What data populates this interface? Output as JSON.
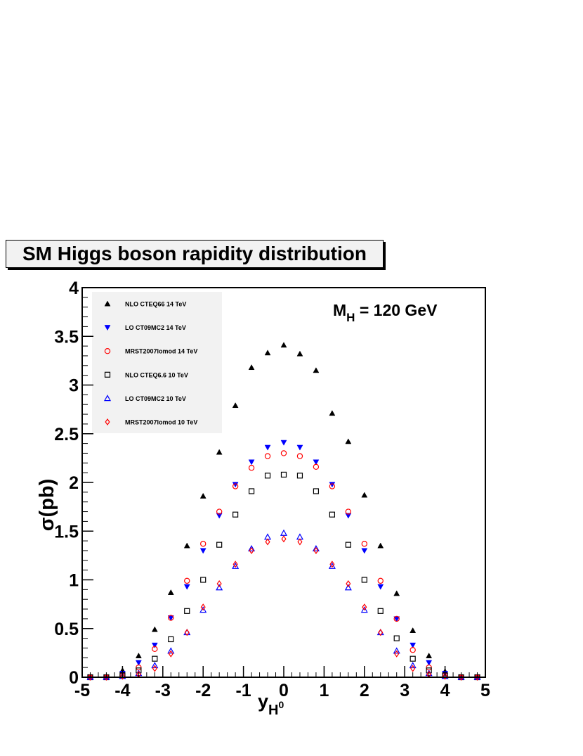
{
  "title": "SM Higgs boson rapidity distribution",
  "annotation": {
    "text": "M",
    "sub": "H",
    "rest": " = 120 GeV"
  },
  "chart_data": {
    "type": "scatter",
    "xlabel": {
      "main": "y",
      "sub": "H",
      "sup": "0"
    },
    "ylabel": "σ(pb)",
    "xlim": [
      -5,
      5
    ],
    "ylim": [
      0,
      4
    ],
    "xticks": [
      "-5",
      "-4",
      "-3",
      "-2",
      "-1",
      "0",
      "1",
      "2",
      "3",
      "4",
      "5"
    ],
    "yticks": [
      "0",
      "0.5",
      "1",
      "1.5",
      "2",
      "2.5",
      "3",
      "3.5",
      "4"
    ],
    "legend_position": "top-left",
    "x": [
      -4.8,
      -4.4,
      -4.0,
      -3.6,
      -3.2,
      -2.8,
      -2.4,
      -2.0,
      -1.6,
      -1.2,
      -0.8,
      -0.4,
      0.0,
      0.4,
      0.8,
      1.2,
      1.6,
      2.0,
      2.4,
      2.8,
      3.2,
      3.6,
      4.0,
      4.4,
      4.8
    ],
    "series": [
      {
        "name": "NLO CTEQ66 14 TeV",
        "marker": "triangle-up-filled",
        "color": "#000000",
        "values": [
          0.0,
          0.0,
          0.07,
          0.22,
          0.49,
          0.87,
          1.35,
          1.86,
          2.31,
          2.79,
          3.18,
          3.33,
          3.41,
          3.32,
          3.15,
          2.71,
          2.42,
          1.87,
          1.35,
          0.86,
          0.48,
          0.22,
          0.06,
          0.0,
          0.0
        ]
      },
      {
        "name": "LO CT09MC2 14 TeV",
        "marker": "triangle-down-filled",
        "color": "#0000ff",
        "values": [
          0.0,
          0.0,
          0.04,
          0.15,
          0.33,
          0.61,
          0.93,
          1.3,
          1.66,
          1.98,
          2.21,
          2.36,
          2.41,
          2.36,
          2.21,
          1.98,
          1.66,
          1.3,
          0.93,
          0.6,
          0.33,
          0.15,
          0.04,
          0.0,
          0.0
        ]
      },
      {
        "name": "MRST2007lomod 14 TeV",
        "marker": "circle-open",
        "color": "#ff0000",
        "values": [
          0.0,
          0.0,
          0.02,
          0.1,
          0.29,
          0.61,
          0.99,
          1.37,
          1.7,
          1.96,
          2.15,
          2.27,
          2.3,
          2.27,
          2.16,
          1.96,
          1.7,
          1.37,
          0.99,
          0.6,
          0.28,
          0.1,
          0.02,
          0.0,
          0.0
        ]
      },
      {
        "name": "NLO CTEQ6.6 10 TeV",
        "marker": "square-open",
        "color": "#000000",
        "values": [
          0.0,
          0.0,
          0.02,
          0.07,
          0.19,
          0.39,
          0.68,
          1.0,
          1.36,
          1.67,
          1.91,
          2.07,
          2.08,
          2.07,
          1.91,
          1.67,
          1.36,
          1.0,
          0.68,
          0.4,
          0.19,
          0.07,
          0.02,
          0.0,
          0.0
        ]
      },
      {
        "name": "LO CT09MC2 10 TeV",
        "marker": "triangle-up-open",
        "color": "#0000ff",
        "values": [
          0.0,
          0.0,
          0.01,
          0.04,
          0.12,
          0.27,
          0.46,
          0.69,
          0.92,
          1.14,
          1.32,
          1.44,
          1.48,
          1.44,
          1.32,
          1.14,
          0.92,
          0.69,
          0.46,
          0.27,
          0.12,
          0.04,
          0.01,
          0.0,
          0.0
        ]
      },
      {
        "name": "MRST2007lomod 10 TeV",
        "marker": "diamond-open",
        "color": "#ff0000",
        "values": [
          0.0,
          0.0,
          0.01,
          0.03,
          0.09,
          0.24,
          0.46,
          0.72,
          0.96,
          1.16,
          1.3,
          1.39,
          1.42,
          1.39,
          1.3,
          1.16,
          0.96,
          0.72,
          0.46,
          0.24,
          0.09,
          0.03,
          0.01,
          0.0,
          0.0
        ]
      }
    ]
  }
}
